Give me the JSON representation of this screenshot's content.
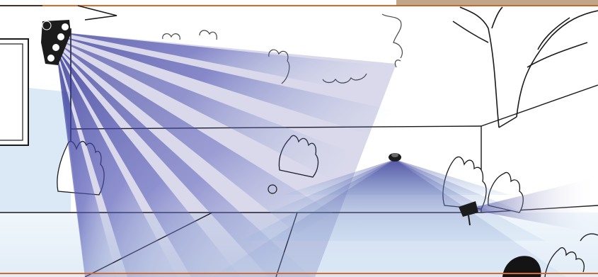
{
  "scene": {
    "description_free": true,
    "icons": [
      "house-icon",
      "pir-motion-sensor-icon",
      "dome-sensor-icon",
      "spotlight-icon",
      "tree-icon",
      "shrub-icon"
    ],
    "colors": {
      "frame_accent": "#d9692a",
      "beam_dark": "#2b2e8f",
      "beam_mid": "#5a5fc0",
      "beam_light": "#b9d6ee",
      "ground_tint": "#dbe9f6",
      "line_art": "#1a1a1a",
      "device_dark": "#1c1c1c"
    },
    "sensors": [
      {
        "name": "wall-mounted-pir-sensor",
        "lenses": 4
      },
      {
        "name": "ground-dome-sensor",
        "lenses": 1
      },
      {
        "name": "garden-spotlight",
        "lenses": 1
      }
    ]
  }
}
